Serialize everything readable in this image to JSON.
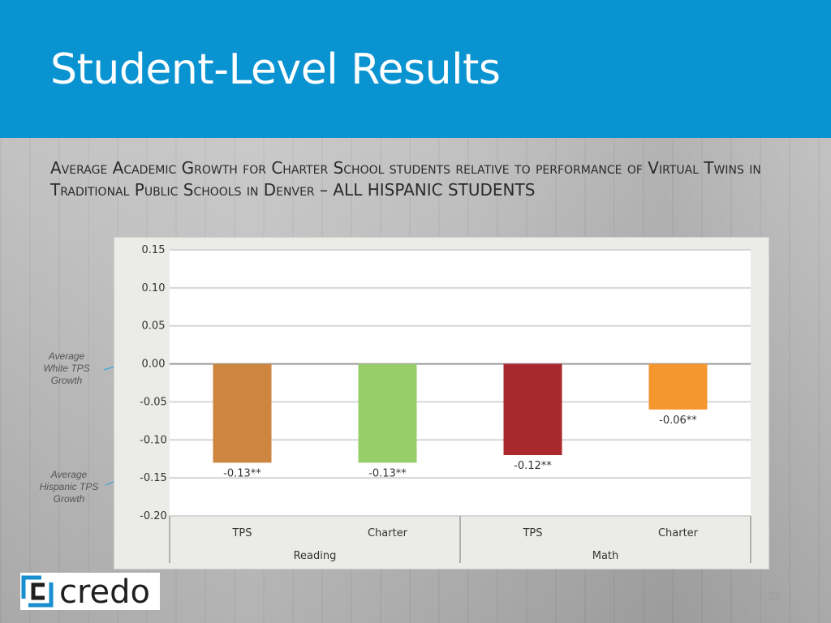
{
  "slide": {
    "title": "Student-Level Results",
    "subtitle": "Average Academic Growth for Charter School students relative to performance of Virtual Twins in Traditional Public Schools in Denver – ALL HISPANIC STUDENTS",
    "note_white": "Average White TPS Growth",
    "note_hispanic": "Average Hispanic TPS Growth",
    "logo_text": "credo",
    "page_number": "32"
  },
  "colors": {
    "header": "#0a93d1",
    "reading_tps": "#cd853f",
    "reading_charter": "#96cf6a",
    "math_tps": "#a8282b",
    "math_charter": "#f5962f",
    "logo_blue": "#1a8fd0"
  },
  "chart_data": {
    "type": "bar",
    "ylim": [
      -0.2,
      0.15
    ],
    "yticks": [
      "0.15",
      "0.10",
      "0.05",
      "0.00",
      "-0.05",
      "-0.10",
      "-0.15",
      "-0.20"
    ],
    "ytick_values": [
      0.15,
      0.1,
      0.05,
      0.0,
      -0.05,
      -0.1,
      -0.15,
      -0.2
    ],
    "grid": true,
    "groups": [
      {
        "name": "Reading",
        "bars": [
          {
            "category": "TPS",
            "value": -0.13,
            "label": "-0.13**",
            "color_key": "reading_tps"
          },
          {
            "category": "Charter",
            "value": -0.13,
            "label": "-0.13**",
            "color_key": "reading_charter"
          }
        ]
      },
      {
        "name": "Math",
        "bars": [
          {
            "category": "TPS",
            "value": -0.12,
            "label": "-0.12**",
            "color_key": "math_tps"
          },
          {
            "category": "Charter",
            "value": -0.06,
            "label": "-0.06**",
            "color_key": "math_charter"
          }
        ]
      }
    ]
  }
}
